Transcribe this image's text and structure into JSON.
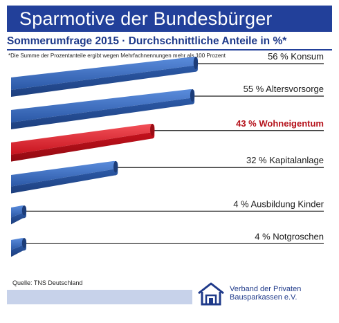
{
  "header": {
    "title": "Sparmotive der Bundesbürger",
    "subtitle": "Sommerumfrage 2015 · Durchschnittliche Anteile in %*",
    "footnote": "*Die Summe der Prozentanteile ergibt wegen Mehrfachnennungen mehr als 100 Prozent"
  },
  "footer": {
    "source": "Quelle: TNS Deutschland",
    "org_line1": "Verband der Privaten",
    "org_line2": "Bausparkassen e.V."
  },
  "colors": {
    "title_bar": "#22409a",
    "bar_blue": "#2f62b4",
    "bar_highlight": "#d81e2a",
    "highlight_text": "#b5121b",
    "bottom_bar": "#c7d2ea"
  },
  "chart_data": {
    "type": "bar",
    "orientation": "horizontal",
    "title": "Sparmotive der Bundesbürger",
    "subtitle": "Sommerumfrage 2015 · Durchschnittliche Anteile in %*",
    "unit": "%",
    "categories": [
      "Konsum",
      "Altersvorsorge",
      "Wohneigentum",
      "Kapitalanlage",
      "Ausbildung Kinder",
      "Notgroschen"
    ],
    "values": [
      56,
      55,
      43,
      32,
      4,
      4
    ],
    "labels": [
      "56 % Konsum",
      "55 % Altersvorsorge",
      "43 % Wohneigentum",
      "32 % Kapitalanlage",
      "4 % Ausbildung Kinder",
      "4 % Notgroschen"
    ],
    "highlight": "Wohneigentum",
    "grid": false,
    "legend": "none"
  }
}
